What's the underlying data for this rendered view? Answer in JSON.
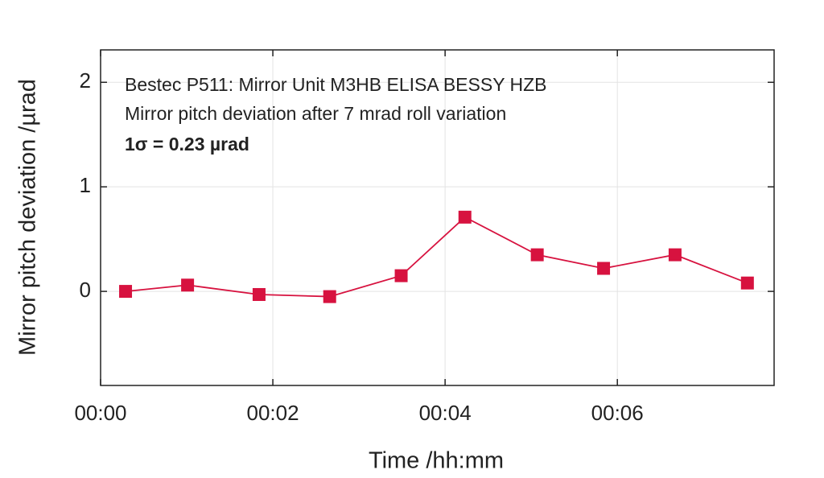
{
  "chart_data": {
    "type": "line",
    "x_label": "Time /hh:mm",
    "y_label": "Mirror pitch deviation /µrad",
    "annotations": [
      "Bestec P511: Mirror Unit M3HB ELISA BESSY HZB",
      "Mirror pitch deviation after 7 mrad roll variation",
      "1σ = 0.23 µrad"
    ],
    "x": [
      0.29,
      1.01,
      1.84,
      2.66,
      3.49,
      4.23,
      5.07,
      5.84,
      6.67,
      7.51
    ],
    "series": [
      {
        "color": "#d7123f",
        "values": [
          0,
          0.06,
          -0.03,
          -0.05,
          0.15,
          0.71,
          0.35,
          0.22,
          0.35,
          0.08
        ]
      }
    ],
    "xlim": [
      0,
      7.82
    ],
    "xticks": [
      {
        "value": 0,
        "label": "00:00"
      },
      {
        "value": 2,
        "label": "00:02"
      },
      {
        "value": 4,
        "label": "00:04"
      },
      {
        "value": 6,
        "label": "00:06"
      }
    ],
    "ylim": [
      -0.9,
      2.31
    ],
    "yticks": [
      0,
      1,
      2
    ],
    "grid": true
  }
}
